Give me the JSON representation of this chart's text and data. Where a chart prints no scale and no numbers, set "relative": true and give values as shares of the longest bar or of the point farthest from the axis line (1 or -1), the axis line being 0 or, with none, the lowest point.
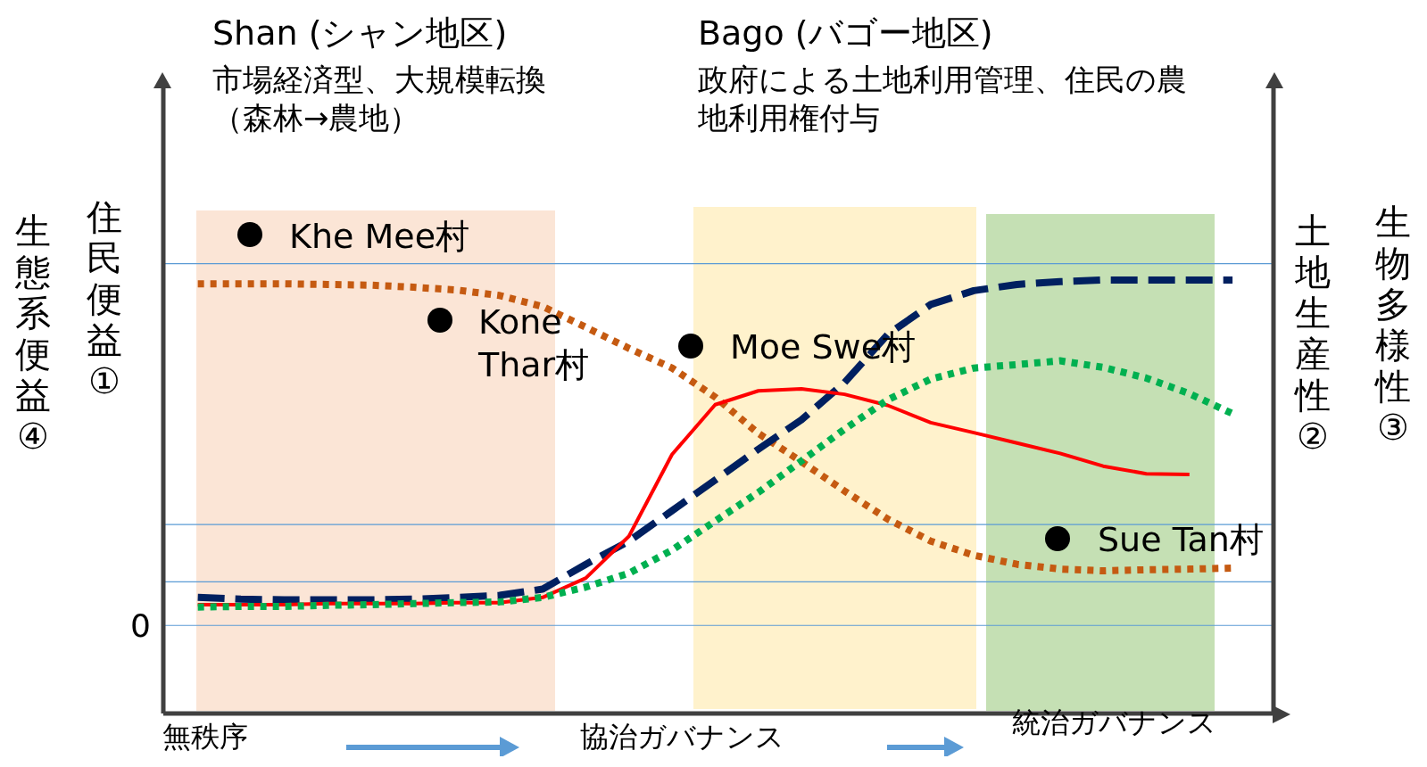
{
  "chart_data": {
    "type": "line",
    "relative": true,
    "ylabel": "住民便益①",
    "y2label": "土地生産性②",
    "categories": [
      null,
      null,
      null,
      null,
      null,
      null,
      null,
      null,
      null,
      null,
      null,
      null,
      null,
      null,
      null,
      null,
      null,
      null,
      null,
      null,
      null,
      null,
      null,
      null,
      null
    ],
    "series": [
      {
        "color": "#c55a11",
        "line_style": "dotted",
        "values": [
          0.989,
          0.989,
          0.989,
          0.987,
          0.985,
          0.979,
          0.971,
          0.955,
          0.923,
          0.863,
          0.802,
          0.745,
          0.661,
          0.556,
          0.474,
          0.389,
          0.308,
          0.244,
          0.203,
          0.177,
          0.163,
          0.158,
          0.161,
          0.163,
          0.166
        ]
      },
      {
        "color": "#002060",
        "line_style": "dashed",
        "values": [
          0.081,
          0.076,
          0.074,
          0.074,
          0.074,
          0.076,
          0.081,
          0.087,
          0.105,
          0.177,
          0.244,
          0.332,
          0.421,
          0.51,
          0.595,
          0.703,
          0.842,
          0.929,
          0.969,
          0.987,
          0.995,
          1,
          1,
          1,
          1
        ]
      },
      {
        "color": "#ff0000",
        "line_style": "solid",
        "values": [
          0.06,
          0.06,
          0.06,
          0.063,
          0.063,
          0.063,
          0.066,
          0.066,
          0.081,
          0.137,
          0.258,
          0.495,
          0.639,
          0.679,
          0.685,
          0.669,
          0.637,
          0.587,
          0.558,
          0.528,
          0.498,
          0.461,
          0.439,
          0.437,
          null
        ]
      },
      {
        "color": "#00b050",
        "line_style": "dotted",
        "values": [
          0.053,
          0.055,
          0.055,
          0.058,
          0.06,
          0.063,
          0.066,
          0.068,
          0.081,
          0.111,
          0.151,
          0.218,
          0.302,
          0.385,
          0.476,
          0.568,
          0.653,
          0.713,
          0.745,
          0.755,
          0.766,
          0.747,
          0.716,
          0.671,
          0.613
        ]
      }
    ],
    "ref_lines": [
      {
        "axis": "y",
        "value": 1.047,
        "color": "#5b9bd5"
      },
      {
        "axis": "y",
        "value": 0.292,
        "color": "#5b9bd5"
      },
      {
        "axis": "y",
        "value": 0.126,
        "color": "#5b9bd5"
      },
      {
        "axis": "y",
        "value": 0,
        "color": "#5b9bd5",
        "label": "0"
      }
    ],
    "annotations": [
      "Shan (シャン地区)",
      "市場経済型、大規模転換（森林→農地）",
      "Bago (バゴー地区)",
      "政府による土地利用管理、住民の農地利用権付与",
      "生態系便益④",
      "生物多様性③",
      "無秩序",
      "協治ガバナンス",
      "統治ガバナンス",
      "Khe Mee村",
      "Kone Thar村",
      "Moe Swe村",
      "Sue Tan村"
    ]
  }
}
